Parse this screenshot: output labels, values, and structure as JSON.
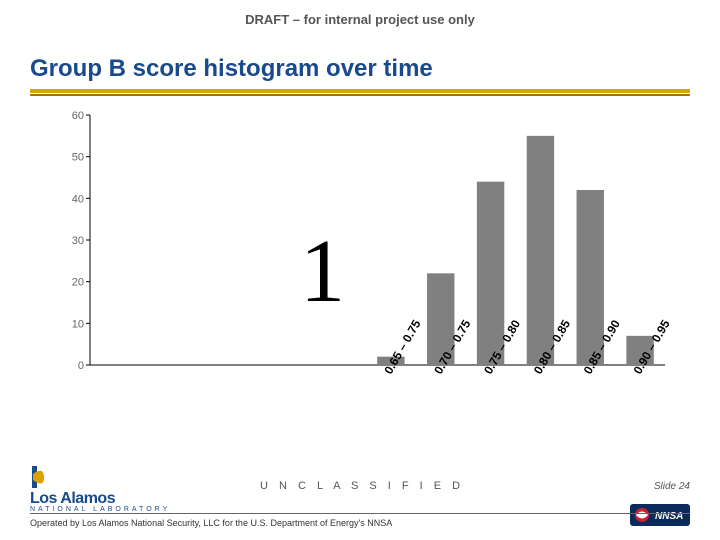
{
  "draft_label": "DRAFT – for internal project use only",
  "title": "Group B score histogram over time",
  "big_number": "1",
  "classification": "U N C L A S S I F I E D",
  "slide_number": "Slide 24",
  "footer": "Operated by Los Alamos National Security, LLC for the U.S. Department of Energy's NNSA",
  "brand_primary": "#194a8d",
  "brand_accent": "#d9a400",
  "lanl_logo": {
    "line1": "Los Alamos",
    "line2": "NATIONAL LABORATORY"
  },
  "nnsa_logo_text": "NNSA",
  "chart": {
    "type": "histogram",
    "background_color": "#ffffff",
    "axis_color": "#000000",
    "tick_label_color": "#666666",
    "tick_label_fontsize": 11,
    "xlabel_fontsize": 12,
    "bar_color": "#808080",
    "bar_width_ratio": 0.55,
    "ylim": [
      0,
      60
    ],
    "ytick_step": 10,
    "y_ticks": [
      0,
      10,
      20,
      30,
      40,
      50,
      60
    ],
    "categories": [
      "0.65 – 0.75",
      "0.70 – 0.75",
      "0.75 – 0.80",
      "0.80 – 0.85",
      "0.85 – 0.90",
      "0.90 – 0.95"
    ],
    "values": [
      2,
      22,
      44,
      55,
      42,
      7
    ],
    "xlabel_rotation_deg": -60
  }
}
